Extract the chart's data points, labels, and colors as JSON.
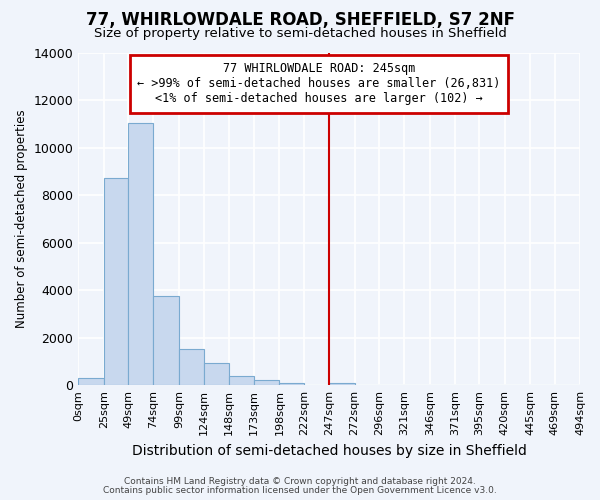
{
  "title1": "77, WHIRLOWDALE ROAD, SHEFFIELD, S7 2NF",
  "title2": "Size of property relative to semi-detached houses in Sheffield",
  "xlabel": "Distribution of semi-detached houses by size in Sheffield",
  "ylabel": "Number of semi-detached properties",
  "bin_edges": [
    0,
    25,
    49,
    74,
    99,
    124,
    148,
    173,
    198,
    222,
    247,
    272,
    296,
    321,
    346,
    371,
    395,
    420,
    445,
    469,
    494
  ],
  "bin_counts": [
    300,
    8700,
    11050,
    3750,
    1530,
    950,
    375,
    200,
    105,
    0,
    105,
    0,
    0,
    0,
    0,
    0,
    0,
    0,
    0,
    0
  ],
  "bar_color": "#c8d8ee",
  "bar_edge_color": "#7aaad0",
  "property_line_x": 247,
  "property_line_color": "#cc0000",
  "annotation_box_color": "#ffffff",
  "annotation_box_edge_color": "#cc0000",
  "annotation_line1": "77 WHIRLOWDALE ROAD: 245sqm",
  "annotation_line2": "← >99% of semi-detached houses are smaller (26,831)",
  "annotation_line3": "<1% of semi-detached houses are larger (102) →",
  "ylim": [
    0,
    14000
  ],
  "yticks": [
    0,
    2000,
    4000,
    6000,
    8000,
    10000,
    12000,
    14000
  ],
  "footer1": "Contains HM Land Registry data © Crown copyright and database right 2024.",
  "footer2": "Contains public sector information licensed under the Open Government Licence v3.0.",
  "background_color": "#f0f4fb",
  "plot_bg_color": "#f0f4fb",
  "grid_color": "#ffffff",
  "tick_labels": [
    "0sqm",
    "25sqm",
    "49sqm",
    "74sqm",
    "99sqm",
    "124sqm",
    "148sqm",
    "173sqm",
    "198sqm",
    "222sqm",
    "247sqm",
    "272sqm",
    "296sqm",
    "321sqm",
    "346sqm",
    "371sqm",
    "395sqm",
    "420sqm",
    "445sqm",
    "469sqm",
    "494sqm"
  ],
  "annotation_fontsize": 8.5,
  "title1_fontsize": 12,
  "title2_fontsize": 9.5,
  "ylabel_fontsize": 8.5,
  "xlabel_fontsize": 10
}
